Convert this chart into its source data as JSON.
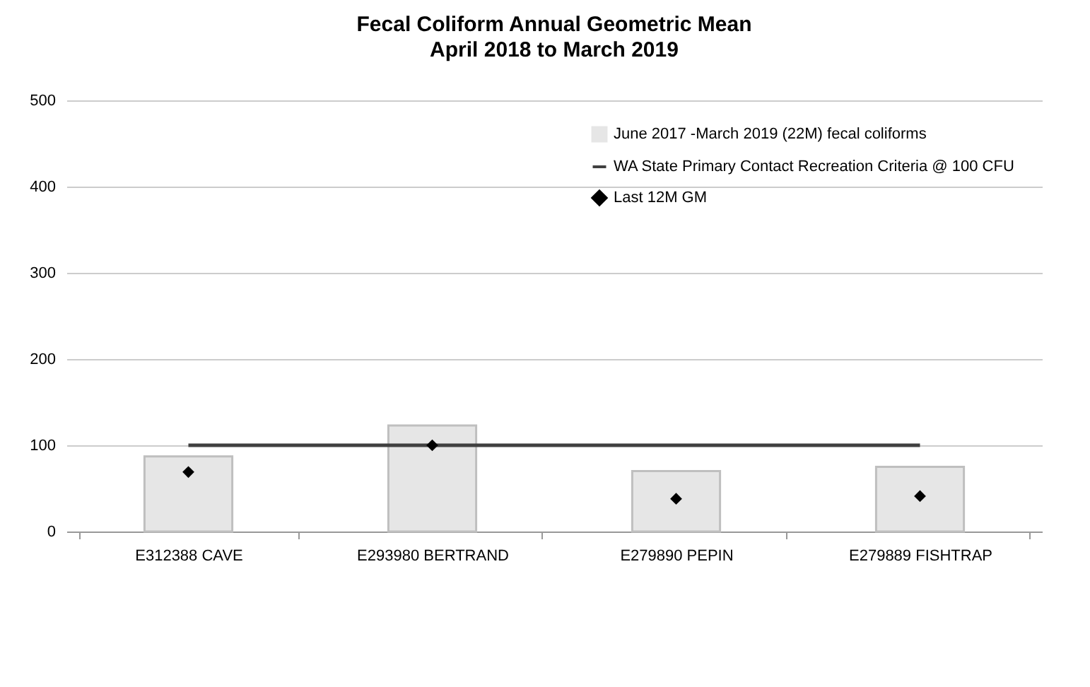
{
  "chart_data": {
    "type": "bar",
    "title": "Fecal Coliform Annual Geometric Mean",
    "subtitle": "April 2018 to March 2019",
    "categories": [
      "E312388 CAVE",
      "E293980 BERTRAND",
      "E279890 PEPIN",
      "E279889 FISHTRAP"
    ],
    "series": [
      {
        "name": "June 2017 -March 2019 (22M) fecal coliforms",
        "color": "#e6e6e6",
        "values": [
          87,
          123,
          70,
          75
        ]
      },
      {
        "name": "WA State Primary Contact Recreation Criteria @ 100 CFU",
        "type": "line",
        "color": "#404040",
        "values": [
          100,
          100,
          100,
          100
        ]
      },
      {
        "name": "Last 12M GM",
        "type": "scatter",
        "marker": "diamond",
        "color": "#000000",
        "values": [
          69,
          100,
          38,
          41
        ]
      }
    ],
    "ylim": [
      0,
      500
    ],
    "yticks": [
      0,
      100,
      200,
      300,
      400,
      500
    ],
    "grid": "y",
    "legend": "top right"
  }
}
